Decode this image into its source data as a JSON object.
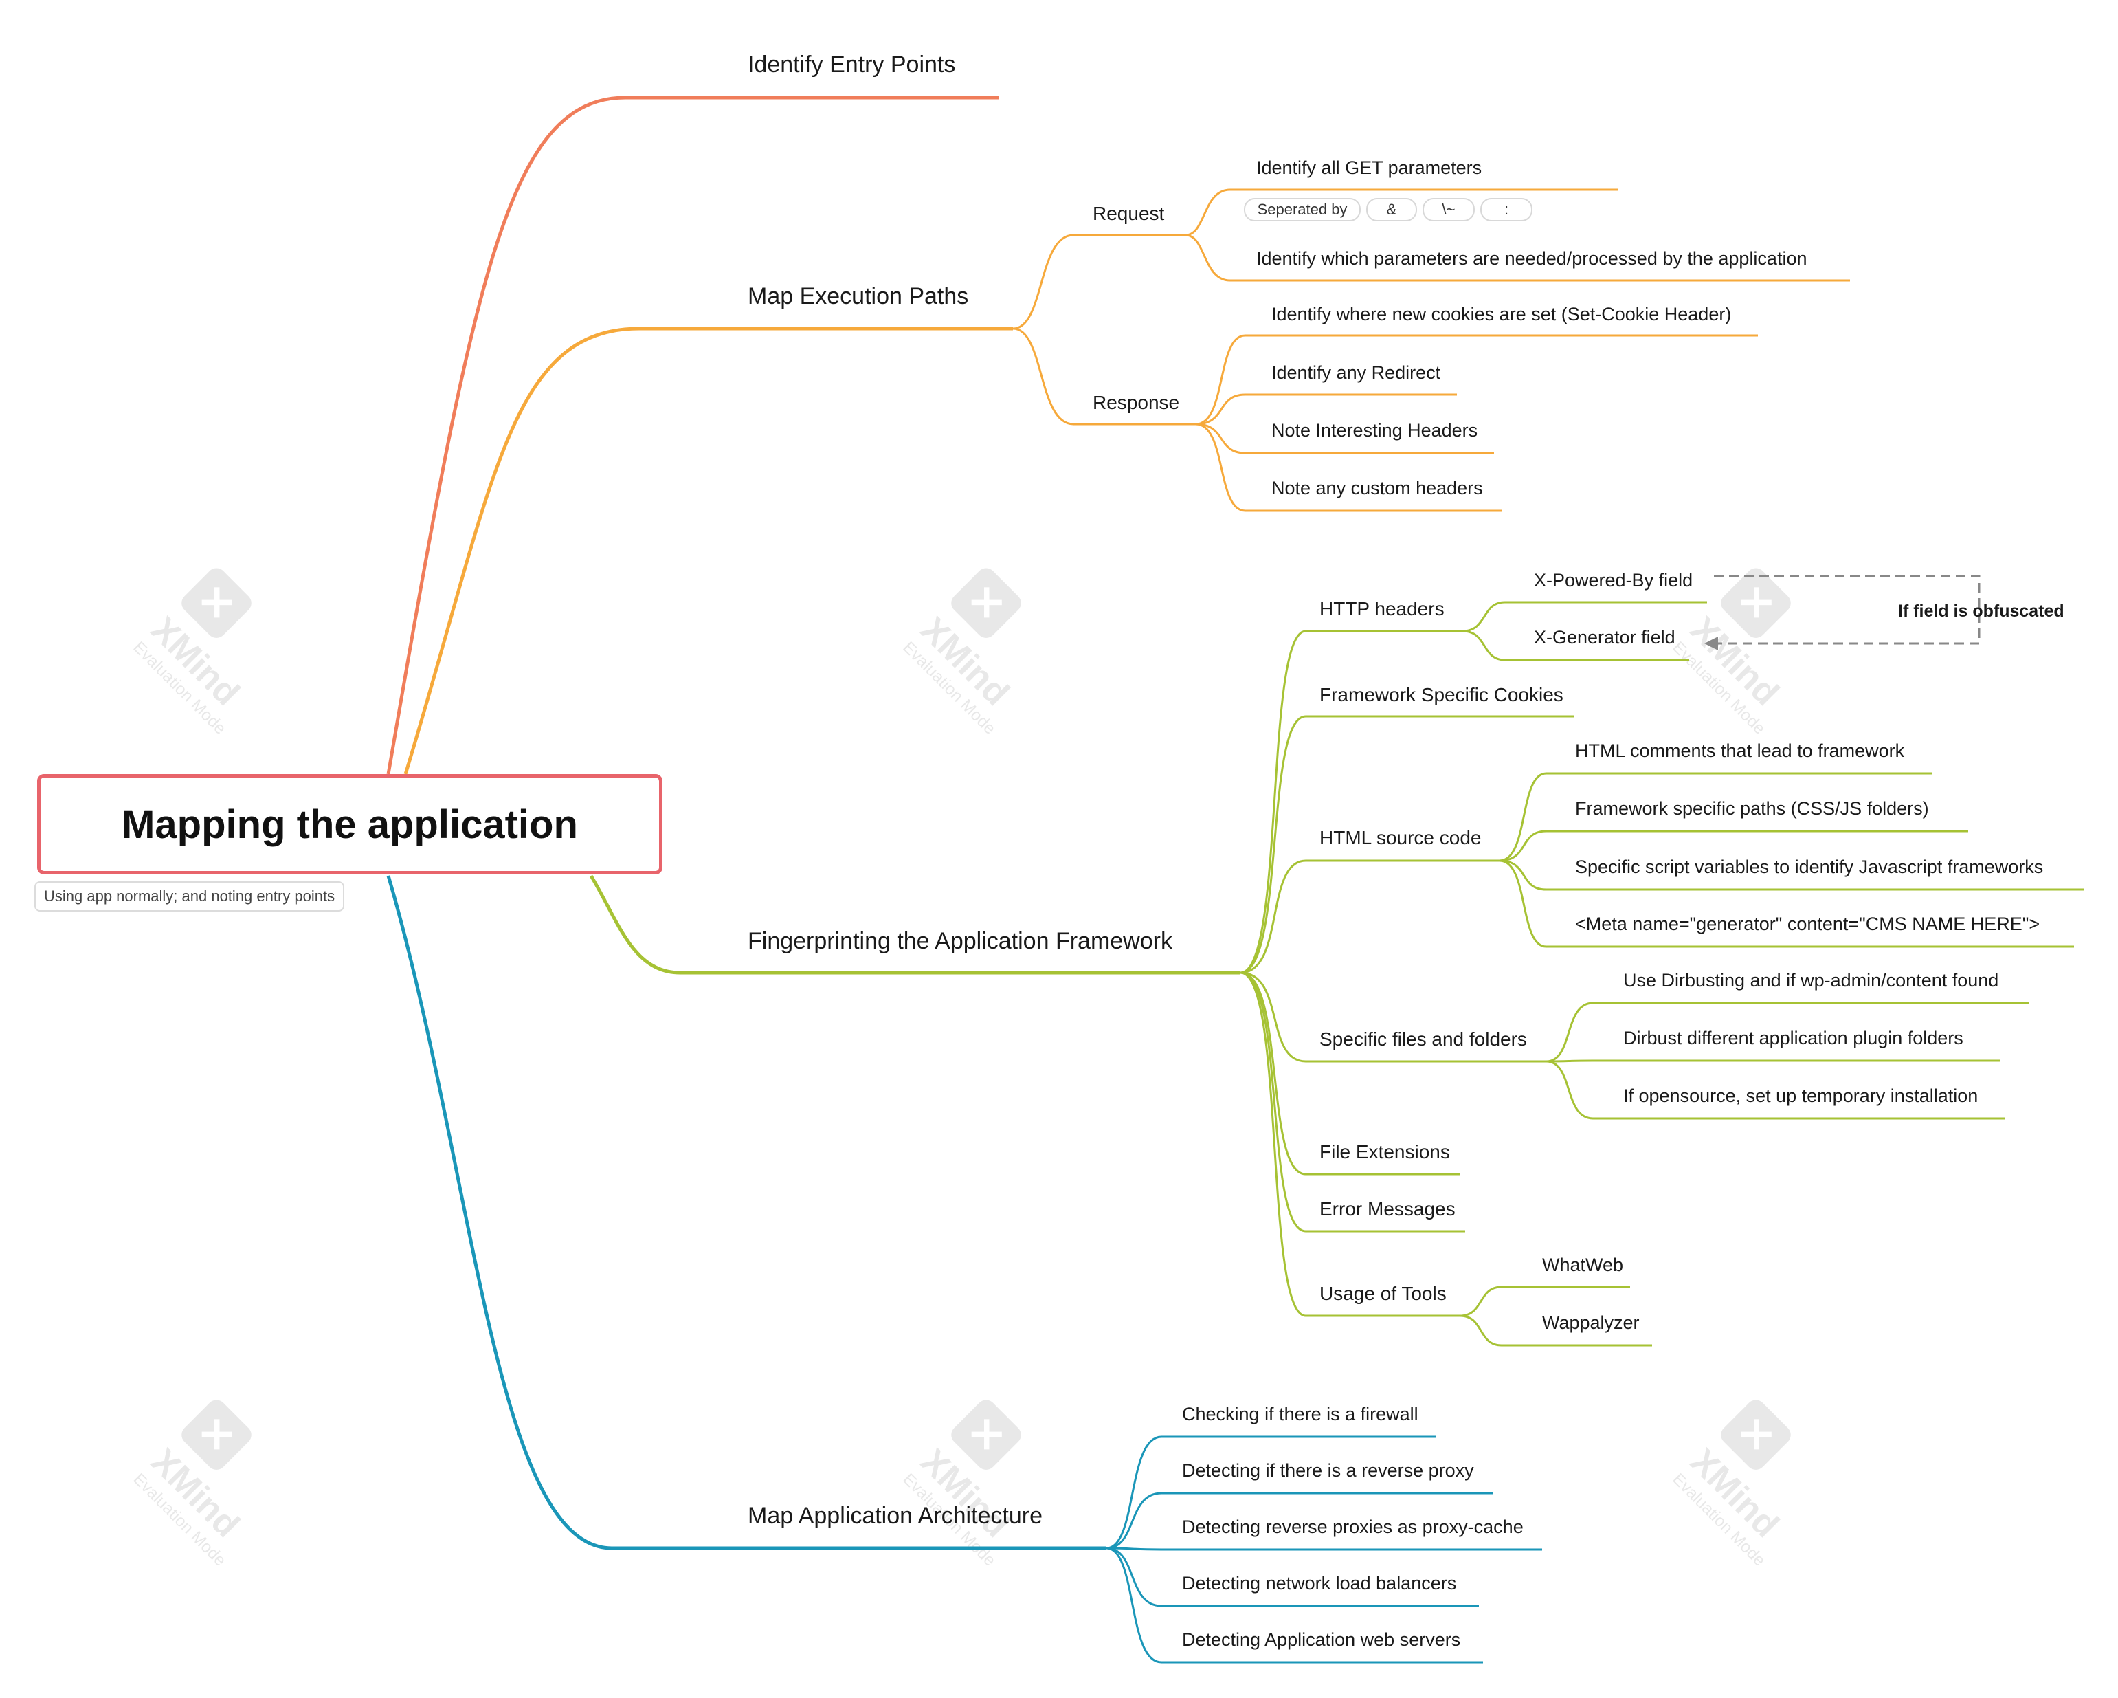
{
  "root": {
    "title": "Mapping the application",
    "note": "Using app normally; and noting entry points"
  },
  "branches": {
    "entry_points": {
      "title": "Identify Entry Points",
      "color": "#f07d5a"
    },
    "execution_paths": {
      "title": "Map Execution Paths",
      "color": "#f6a93b",
      "request": {
        "title": "Request",
        "items": [
          "Identify all GET parameters",
          "Identify which parameters are needed/processed by the application"
        ],
        "separator_label": "Seperated by",
        "separators": [
          "&",
          "\\~",
          ":"
        ]
      },
      "response": {
        "title": "Response",
        "items": [
          "Identify where new cookies are set (Set-Cookie Header)",
          "Identify any Redirect",
          "Note Interesting Headers",
          "Note any custom headers"
        ]
      }
    },
    "fingerprinting": {
      "title": "Fingerprinting the Application Framework",
      "color": "#a6c234",
      "http_headers": {
        "title": "HTTP headers",
        "items": [
          "X-Powered-By field",
          "X-Generator field"
        ],
        "relationship": "If field is obfuscated"
      },
      "cookies": {
        "title": "Framework Specific Cookies"
      },
      "html_source": {
        "title": "HTML source code",
        "items": [
          "HTML comments that lead to framework",
          "Framework specific paths (CSS/JS folders)",
          "Specific script variables to identify Javascript frameworks",
          "<Meta name=\"generator\" content=\"CMS NAME HERE\">"
        ]
      },
      "files_folders": {
        "title": "Specific files and folders",
        "items": [
          "Use Dirbusting and if wp-admin/content found",
          "Dirbust different application plugin folders",
          "If opensource, set up temporary installation"
        ]
      },
      "extensions": {
        "title": "File Extensions"
      },
      "errors": {
        "title": "Error Messages"
      },
      "tools": {
        "title": "Usage of Tools",
        "items": [
          "WhatWeb",
          "Wappalyzer"
        ]
      }
    },
    "architecture": {
      "title": "Map Application Architecture",
      "color": "#1a96b8",
      "items": [
        "Checking if there is a firewall",
        "Detecting if there is a reverse proxy",
        "Detecting reverse proxies as proxy-cache",
        "Detecting network load balancers",
        "Detecting Application web servers"
      ]
    }
  },
  "watermark": {
    "brand": "XMind",
    "mode": "Evaluation Mode"
  }
}
